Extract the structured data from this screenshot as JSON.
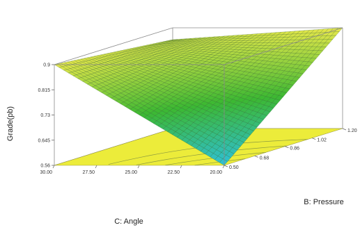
{
  "chart_data": {
    "type": "surface3d",
    "title": "",
    "xlabel": "C: Angle",
    "ylabel": "B: Pressure",
    "zlabel": "Grade(pb)",
    "x_ticks": [
      "30.00",
      "27.50",
      "25.00",
      "22.50",
      "20.00"
    ],
    "y_ticks": [
      "0.50",
      "0.68",
      "0.86",
      "1.02",
      "1.20"
    ],
    "z_ticks": [
      "0.9",
      "0.815",
      "0.73",
      "0.645",
      "0.56"
    ],
    "xlim": [
      20,
      30
    ],
    "ylim": [
      0.5,
      1.2
    ],
    "zlim": [
      0.56,
      0.9
    ],
    "corners": [
      {
        "angle": 30,
        "pressure": 0.5,
        "grade": 0.9
      },
      {
        "angle": 30,
        "pressure": 1.2,
        "grade": 0.86
      },
      {
        "angle": 20,
        "pressure": 1.2,
        "grade": 0.9
      },
      {
        "angle": 20,
        "pressure": 0.5,
        "grade": 0.56
      }
    ],
    "grid": true,
    "colors": {
      "high": "#e8e84a",
      "mid": "#3cb832",
      "low": "#2ec0d8",
      "floor": "#ecec3a",
      "mesh": "#1c4a1c"
    }
  }
}
